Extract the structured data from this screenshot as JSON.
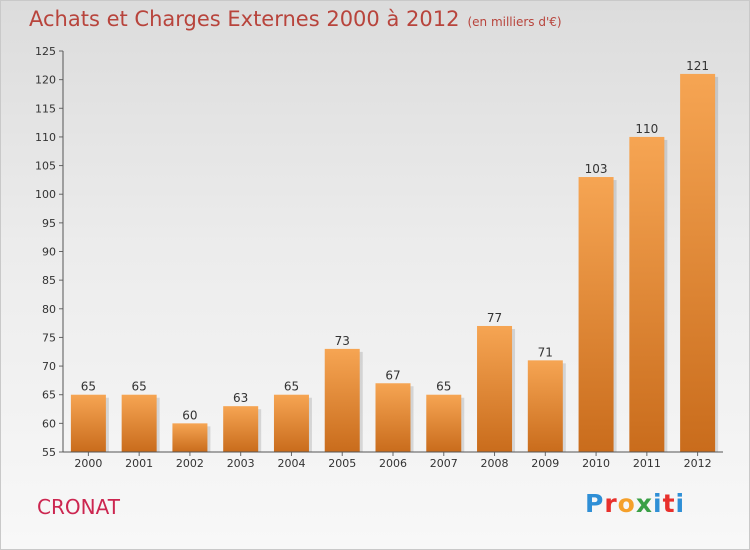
{
  "header": {
    "title": "Achats et Charges Externes 2000 à 2012",
    "subtitle": "(en milliers d'€)"
  },
  "footer": {
    "town": "CRONAT",
    "logo": "Proxiti"
  },
  "colors": {
    "bar_light": "#f6a553",
    "bar_dark": "#c96c1c",
    "title": "#b8443c",
    "town": "#cc2650"
  },
  "chart_data": {
    "type": "bar",
    "categories": [
      "2000",
      "2001",
      "2002",
      "2003",
      "2004",
      "2005",
      "2006",
      "2007",
      "2008",
      "2009",
      "2010",
      "2011",
      "2012"
    ],
    "values": [
      65,
      65,
      60,
      63,
      65,
      73,
      67,
      65,
      77,
      71,
      103,
      110,
      121
    ],
    "title": "Achats et Charges Externes 2000 à 2012",
    "subtitle": "(en milliers d'€)",
    "xlabel": "",
    "ylabel": "",
    "ylim": [
      55,
      125
    ],
    "yticks": [
      55,
      60,
      65,
      70,
      75,
      80,
      85,
      90,
      95,
      100,
      105,
      110,
      115,
      120,
      125
    ],
    "grid": false,
    "legend": "none"
  }
}
